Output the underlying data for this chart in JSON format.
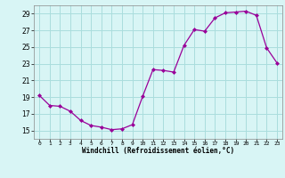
{
  "x": [
    0,
    1,
    2,
    3,
    4,
    5,
    6,
    7,
    8,
    9,
    10,
    11,
    12,
    13,
    14,
    15,
    16,
    17,
    18,
    19,
    20,
    21,
    22,
    23
  ],
  "y": [
    19.2,
    18.0,
    17.9,
    17.3,
    16.2,
    15.6,
    15.4,
    15.1,
    15.2,
    15.7,
    19.1,
    22.3,
    22.2,
    22.0,
    25.2,
    27.1,
    26.9,
    28.5,
    29.1,
    29.2,
    29.3,
    28.8,
    24.9,
    23.1
  ],
  "line_color": "#990099",
  "marker": "D",
  "marker_size": 2,
  "bg_color": "#d8f5f5",
  "grid_color": "#aadddd",
  "xlabel": "Windchill (Refroidissement éolien,°C)",
  "ylim": [
    14,
    30
  ],
  "xlim": [
    -0.5,
    23.5
  ],
  "yticks": [
    15,
    17,
    19,
    21,
    23,
    25,
    27,
    29
  ],
  "xticks": [
    0,
    1,
    2,
    3,
    4,
    5,
    6,
    7,
    8,
    9,
    10,
    11,
    12,
    13,
    14,
    15,
    16,
    17,
    18,
    19,
    20,
    21,
    22,
    23
  ]
}
